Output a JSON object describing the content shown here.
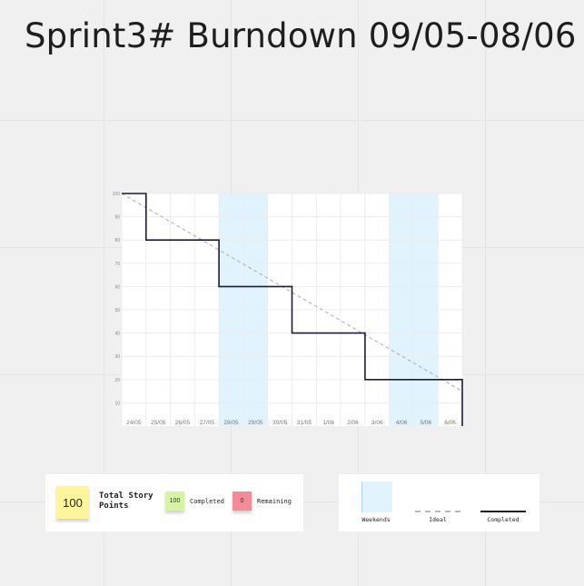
{
  "title": "Sprint3# Burndown 09/05-08/06",
  "chart_data": {
    "type": "line",
    "categories": [
      "24/05",
      "25/05",
      "26/05",
      "27/05",
      "28/05",
      "29/05",
      "30/05",
      "31/05",
      "1/06",
      "2/06",
      "3/06",
      "4/06",
      "5/06",
      "6/06"
    ],
    "ylim": [
      0,
      100
    ],
    "yticks": [
      100,
      90,
      80,
      70,
      60,
      50,
      40,
      30,
      20,
      10
    ],
    "weekend_categories": [
      "28/05",
      "29/05",
      "4/06",
      "5/06"
    ],
    "series": [
      {
        "name": "Ideal",
        "style": "dashed",
        "points": [
          [
            0,
            100
          ],
          [
            14,
            15
          ]
        ]
      },
      {
        "name": "Completed",
        "style": "step",
        "points": [
          [
            0,
            100
          ],
          [
            1,
            100
          ],
          [
            1,
            80
          ],
          [
            4,
            80
          ],
          [
            4,
            60
          ],
          [
            7,
            60
          ],
          [
            7,
            40
          ],
          [
            10,
            40
          ],
          [
            10,
            20
          ],
          [
            14,
            20
          ],
          [
            14,
            0
          ]
        ]
      }
    ],
    "colors": {
      "weekend": "#e1f3fc",
      "ideal": "#b8b8b8",
      "completed": "#1d1b3a",
      "grid": "#ededed"
    }
  },
  "summary": {
    "total_value": "100",
    "total_label": "Total Story Points",
    "completed_value": "100",
    "completed_label": "Completed",
    "remaining_value": "0",
    "remaining_label": "Remaining"
  },
  "legend": {
    "weekends": "Weekends",
    "ideal": "Ideal",
    "completed": "Completed"
  }
}
